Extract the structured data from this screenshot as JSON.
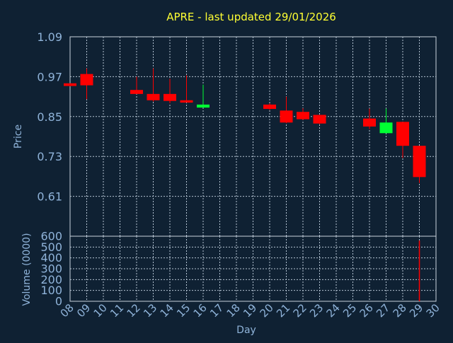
{
  "chart_data": {
    "type": "candlestick",
    "title": "APRE - last updated 29/01/2026",
    "xlabel": "Day",
    "x_ticks": [
      "08",
      "09",
      "10",
      "11",
      "12",
      "13",
      "14",
      "15",
      "16",
      "17",
      "18",
      "19",
      "20",
      "21",
      "22",
      "23",
      "24",
      "25",
      "26",
      "27",
      "28",
      "29",
      "30"
    ],
    "x_range": [
      8,
      30
    ],
    "price_panel": {
      "ylabel": "Price",
      "ylim": [
        0.49,
        1.09
      ],
      "y_ticks": [
        "1.09",
        "0.97",
        "0.85",
        "0.73",
        "0.61"
      ],
      "y_tick_values": [
        1.09,
        0.97,
        0.85,
        0.73,
        0.61
      ],
      "grid": true
    },
    "volume_panel": {
      "ylabel": "Volume (0000)",
      "ylim": [
        0,
        600
      ],
      "y_ticks": [
        "600",
        "500",
        "400",
        "300",
        "200",
        "100",
        "0"
      ],
      "y_tick_values": [
        600,
        500,
        400,
        300,
        200,
        100,
        0
      ],
      "grid": true
    },
    "up_color": "#00ff33",
    "down_color": "#ff0000",
    "candles": [
      {
        "day": 8,
        "open": 0.95,
        "high": 0.95,
        "low": 0.941,
        "close": 0.942
      },
      {
        "day": 9,
        "open": 0.978,
        "high": 0.995,
        "low": 0.902,
        "close": 0.944
      },
      {
        "day": 12,
        "open": 0.93,
        "high": 0.97,
        "low": 0.918,
        "close": 0.918
      },
      {
        "day": 13,
        "open": 0.918,
        "high": 0.995,
        "low": 0.895,
        "close": 0.899
      },
      {
        "day": 14,
        "open": 0.918,
        "high": 0.964,
        "low": 0.89,
        "close": 0.897
      },
      {
        "day": 15,
        "open": 0.899,
        "high": 0.974,
        "low": 0.892,
        "close": 0.892
      },
      {
        "day": 16,
        "open": 0.877,
        "high": 0.946,
        "low": 0.877,
        "close": 0.886
      },
      {
        "day": 20,
        "open": 0.886,
        "high": 0.89,
        "low": 0.87,
        "close": 0.873
      },
      {
        "day": 21,
        "open": 0.868,
        "high": 0.91,
        "low": 0.83,
        "close": 0.832
      },
      {
        "day": 22,
        "open": 0.864,
        "high": 0.875,
        "low": 0.84,
        "close": 0.842
      },
      {
        "day": 23,
        "open": 0.855,
        "high": 0.855,
        "low": 0.827,
        "close": 0.829
      },
      {
        "day": 26,
        "open": 0.844,
        "high": 0.874,
        "low": 0.812,
        "close": 0.82
      },
      {
        "day": 27,
        "open": 0.8,
        "high": 0.874,
        "low": 0.8,
        "close": 0.832
      },
      {
        "day": 28,
        "open": 0.834,
        "high": 0.834,
        "low": 0.725,
        "close": 0.762
      },
      {
        "day": 29,
        "open": 0.762,
        "high": 0.762,
        "low": 0.65,
        "close": 0.668
      }
    ],
    "volume": [
      {
        "day": 29,
        "value": 560
      }
    ]
  }
}
